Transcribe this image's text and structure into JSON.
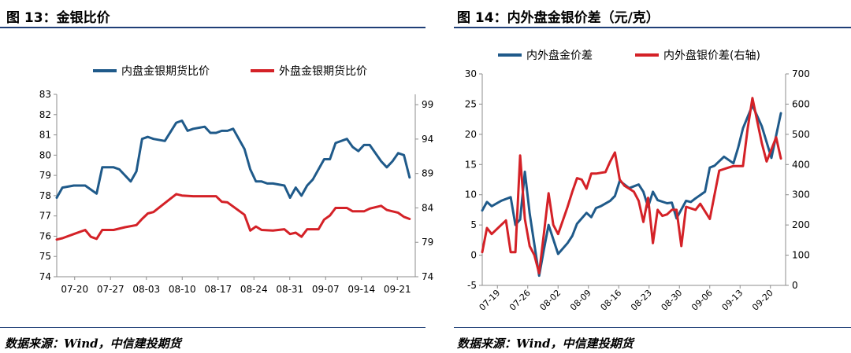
{
  "left": {
    "title": "图 13：金银比价",
    "source": "数据来源：Wind，中信建投期货",
    "chart_data": {
      "type": "line",
      "x_ticks": [
        "07-20",
        "07-27",
        "08-03",
        "08-10",
        "08-17",
        "08-24",
        "08-31",
        "09-07",
        "09-14",
        "09-21"
      ],
      "y_left_ticks": [
        "83",
        "82",
        "81",
        "80",
        "79",
        "78",
        "77",
        "76",
        "75",
        "74"
      ],
      "y_right_ticks": [
        "99",
        "94",
        "89",
        "84",
        "79",
        "74"
      ],
      "ylim_left": [
        74,
        83
      ],
      "ylim_right": [
        74,
        100.5
      ],
      "xlim": [
        0,
        63
      ],
      "legend_position": "top",
      "series": [
        {
          "name": "内盘金银期货比价",
          "axis": "left",
          "color": "#1f5a8a",
          "x": [
            0,
            1,
            3,
            5,
            7,
            8,
            10,
            11,
            13,
            14,
            15,
            16,
            17,
            19,
            21,
            22,
            23,
            24,
            26,
            27,
            28,
            29,
            30,
            31,
            33,
            34,
            35,
            36,
            37,
            38,
            40,
            41,
            42,
            43,
            44,
            45,
            47,
            48,
            49,
            51,
            52,
            53,
            54,
            55,
            57,
            58,
            59,
            60,
            61,
            62
          ],
          "y": [
            77.9,
            78.4,
            78.5,
            78.5,
            78.1,
            79.4,
            79.4,
            79.3,
            78.7,
            79.2,
            80.8,
            80.9,
            80.8,
            80.7,
            81.6,
            81.7,
            81.2,
            81.3,
            81.4,
            81.1,
            81.1,
            81.2,
            81.2,
            81.3,
            80.3,
            79.3,
            78.7,
            78.7,
            78.6,
            78.6,
            78.5,
            77.9,
            78.4,
            78.0,
            78.5,
            78.8,
            79.8,
            79.8,
            80.6,
            80.8,
            80.4,
            80.2,
            80.5,
            80.5,
            79.7,
            79.4,
            79.7,
            80.1,
            80.0,
            78.9
          ]
        },
        {
          "name": "外盘金银期货比价",
          "axis": "right",
          "color": "#d42127",
          "x": [
            0,
            1,
            3,
            5,
            6,
            7,
            8,
            10,
            12,
            14,
            15,
            16,
            17,
            19,
            21,
            22,
            24,
            26,
            28,
            29,
            30,
            31,
            33,
            34,
            35,
            36,
            38,
            40,
            41,
            42,
            43,
            44,
            46,
            47,
            48,
            49,
            51,
            52,
            54,
            55,
            57,
            58,
            60,
            61,
            62
          ],
          "y": [
            79.4,
            79.6,
            80.2,
            80.8,
            79.8,
            79.5,
            80.8,
            80.8,
            81.2,
            81.5,
            82.4,
            83.2,
            83.4,
            84.7,
            86.0,
            85.8,
            85.7,
            85.7,
            85.7,
            84.9,
            84.8,
            84.2,
            83.0,
            80.7,
            81.3,
            80.8,
            80.7,
            80.9,
            80.2,
            80.4,
            79.8,
            80.9,
            80.9,
            82.3,
            82.9,
            84.0,
            84.0,
            83.5,
            83.5,
            83.9,
            84.3,
            83.7,
            83.3,
            82.7,
            82.4
          ]
        }
      ]
    }
  },
  "right": {
    "title": "图 14：内外盘金银价差（元/克）",
    "source": "数据来源：Wind，中信建投期货",
    "chart_data": {
      "type": "line",
      "x_ticks": [
        "07-19",
        "07-26",
        "08-02",
        "08-09",
        "08-16",
        "08-23",
        "08-30",
        "09-06",
        "09-13",
        "09-20"
      ],
      "y_left_ticks": [
        "30",
        "25",
        "20",
        "15",
        "10",
        "5",
        "0",
        "-5"
      ],
      "y_right_ticks": [
        "700",
        "600",
        "500",
        "400",
        "300",
        "200",
        "100",
        "0"
      ],
      "ylim_left": [
        -5,
        30
      ],
      "ylim_right": [
        0,
        700
      ],
      "xlim": [
        0,
        64
      ],
      "legend_position": "top",
      "series": [
        {
          "name": "内外盘金价差",
          "axis": "left",
          "color": "#1f5a8a",
          "x": [
            0,
            1,
            2,
            4,
            6,
            7,
            8,
            9,
            10,
            12,
            13,
            14,
            16,
            18,
            19,
            20,
            22,
            23,
            24,
            25,
            27,
            28,
            29,
            31,
            33,
            34,
            35,
            36,
            37,
            39,
            40,
            41,
            43,
            44,
            45,
            47,
            48,
            49,
            51,
            53,
            54,
            55,
            57,
            59,
            61,
            63
          ],
          "y": [
            7.4,
            8.8,
            8.1,
            9.0,
            9.6,
            5.0,
            5.9,
            13.8,
            6.9,
            -3.4,
            0.9,
            5.0,
            0.2,
            2.0,
            3.2,
            5.2,
            7.0,
            6.3,
            7.8,
            8.1,
            9.0,
            9.8,
            12.3,
            11.1,
            11.7,
            10.5,
            8.0,
            10.5,
            9.1,
            8.6,
            8.7,
            6.1,
            9.0,
            8.8,
            9.4,
            10.5,
            14.5,
            14.8,
            16.3,
            15.2,
            17.8,
            21.0,
            24.8,
            21.3,
            16.1,
            23.5
          ]
        },
        {
          "name": "内外盘银价差(右轴)",
          "axis": "right",
          "color": "#d42127",
          "x": [
            0,
            1,
            2,
            4,
            5,
            6,
            7,
            8,
            9,
            10,
            11,
            12,
            13,
            14,
            15,
            16,
            18,
            19,
            20,
            21,
            22,
            23,
            24,
            26,
            27,
            28,
            29,
            30,
            31,
            32,
            33,
            34,
            35,
            36,
            37,
            38,
            39,
            40,
            41,
            42,
            43,
            45,
            46,
            48,
            50,
            52,
            53,
            54,
            55,
            56,
            57,
            59,
            60,
            61,
            62,
            63
          ],
          "y": [
            110,
            190,
            170,
            200,
            215,
            110,
            110,
            430,
            220,
            130,
            100,
            40,
            170,
            305,
            200,
            170,
            260,
            310,
            355,
            350,
            320,
            370,
            370,
            375,
            410,
            440,
            350,
            330,
            320,
            310,
            280,
            210,
            290,
            140,
            250,
            230,
            235,
            250,
            250,
            130,
            260,
            250,
            270,
            220,
            380,
            390,
            395,
            395,
            395,
            520,
            620,
            470,
            410,
            450,
            490,
            420
          ]
        }
      ]
    }
  }
}
